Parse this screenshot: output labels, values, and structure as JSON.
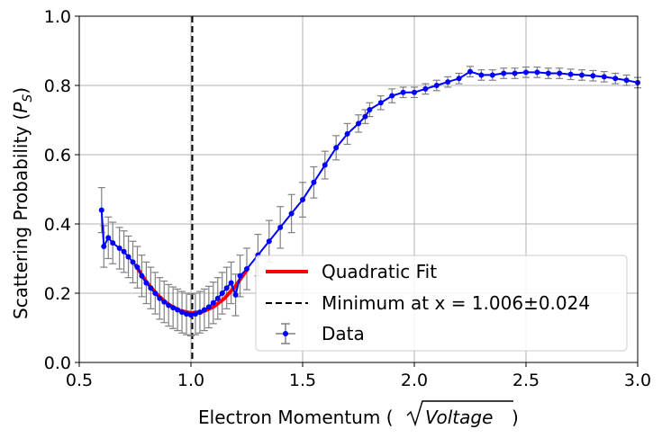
{
  "chart_data": {
    "type": "scatter",
    "xlabel": "Electron Momentum (",
    "xlabel_math": "Voltage",
    "xlabel_close": ")",
    "ylabel": "Scattering Probability (",
    "ylabel_math": "P",
    "ylabel_sub": "S",
    "ylabel_close": ")",
    "xlim": [
      0.5,
      3.0
    ],
    "ylim": [
      0.0,
      1.0
    ],
    "xticks": [
      "0.5",
      "1.0",
      "1.5",
      "2.0",
      "2.5",
      "3.0"
    ],
    "yticks": [
      "0.0",
      "0.2",
      "0.4",
      "0.6",
      "0.8",
      "1.0"
    ],
    "grid": true,
    "legend_position": "lower-right",
    "colors": {
      "data": "#0000ff",
      "errorbar": "#808080",
      "fit": "#ff0000",
      "vline": "#000000"
    },
    "series": [
      {
        "name": "Quadratic Fit",
        "type": "line",
        "x": [
          0.75,
          0.8,
          0.85,
          0.9,
          0.95,
          1.0,
          1.05,
          1.1,
          1.15,
          1.2,
          1.25
        ],
        "y": [
          0.283,
          0.233,
          0.195,
          0.167,
          0.15,
          0.143,
          0.146,
          0.16,
          0.185,
          0.221,
          0.267
        ]
      },
      {
        "name": "Minimum at x = 1.006±0.024",
        "type": "vline",
        "x": 1.006
      },
      {
        "name": "Data",
        "type": "errorbar",
        "x": [
          0.6,
          0.61,
          0.63,
          0.65,
          0.68,
          0.7,
          0.72,
          0.74,
          0.76,
          0.78,
          0.8,
          0.82,
          0.84,
          0.86,
          0.88,
          0.9,
          0.92,
          0.94,
          0.96,
          0.98,
          1.0,
          1.02,
          1.04,
          1.06,
          1.08,
          1.1,
          1.12,
          1.14,
          1.16,
          1.18,
          1.2,
          1.22,
          1.25,
          1.3,
          1.35,
          1.4,
          1.45,
          1.5,
          1.55,
          1.6,
          1.65,
          1.7,
          1.75,
          1.78,
          1.8,
          1.85,
          1.9,
          1.95,
          2.0,
          2.05,
          2.1,
          2.15,
          2.2,
          2.25,
          2.3,
          2.35,
          2.4,
          2.45,
          2.5,
          2.55,
          2.6,
          2.65,
          2.7,
          2.75,
          2.8,
          2.85,
          2.9,
          2.95,
          3.0
        ],
        "y": [
          0.44,
          0.335,
          0.36,
          0.345,
          0.33,
          0.32,
          0.305,
          0.29,
          0.275,
          0.25,
          0.23,
          0.215,
          0.2,
          0.185,
          0.175,
          0.165,
          0.158,
          0.152,
          0.145,
          0.14,
          0.137,
          0.14,
          0.145,
          0.152,
          0.16,
          0.172,
          0.185,
          0.2,
          0.215,
          0.23,
          0.195,
          0.25,
          0.27,
          0.31,
          0.35,
          0.39,
          0.43,
          0.47,
          0.52,
          0.57,
          0.62,
          0.66,
          0.69,
          0.71,
          0.73,
          0.75,
          0.77,
          0.78,
          0.78,
          0.79,
          0.8,
          0.81,
          0.82,
          0.84,
          0.83,
          0.83,
          0.835,
          0.835,
          0.838,
          0.838,
          0.835,
          0.835,
          0.832,
          0.83,
          0.828,
          0.825,
          0.82,
          0.815,
          0.808
        ],
        "yerr": [
          0.065,
          0.06,
          0.06,
          0.06,
          0.06,
          0.06,
          0.06,
          0.06,
          0.06,
          0.06,
          0.06,
          0.06,
          0.06,
          0.06,
          0.06,
          0.06,
          0.06,
          0.06,
          0.06,
          0.06,
          0.06,
          0.06,
          0.06,
          0.06,
          0.06,
          0.06,
          0.06,
          0.06,
          0.06,
          0.06,
          0.06,
          0.06,
          0.06,
          0.06,
          0.06,
          0.06,
          0.055,
          0.05,
          0.045,
          0.04,
          0.035,
          0.03,
          0.025,
          0.02,
          0.02,
          0.02,
          0.02,
          0.015,
          0.015,
          0.015,
          0.015,
          0.015,
          0.015,
          0.015,
          0.015,
          0.015,
          0.015,
          0.015,
          0.015,
          0.015,
          0.015,
          0.015,
          0.015,
          0.015,
          0.015,
          0.015,
          0.015,
          0.015,
          0.015
        ],
        "xerr": 0.01
      }
    ],
    "legend": [
      {
        "label": "Quadratic Fit",
        "marker": "line-red"
      },
      {
        "label": "Minimum at x = 1.006±0.024",
        "marker": "dashed-black"
      },
      {
        "label": "Data",
        "marker": "errorbar-point"
      }
    ]
  }
}
